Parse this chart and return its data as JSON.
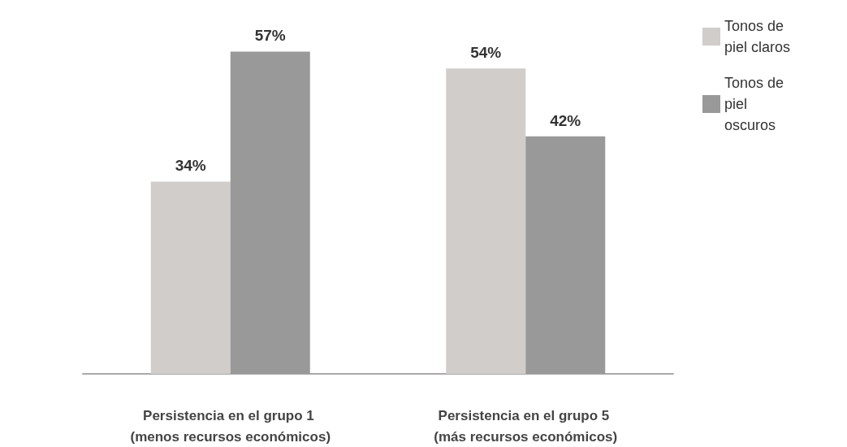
{
  "chart_data": {
    "type": "bar",
    "categories": [
      "Persistencia en el grupo 1 (menos recursos económicos)",
      "Persistencia en el grupo 5 (más recursos económicos)"
    ],
    "series": [
      {
        "name": "Tonos de piel claros",
        "color": "#d0cdcb",
        "values": [
          34,
          54
        ],
        "value_labels": [
          "34%",
          "54%"
        ]
      },
      {
        "name": "Tonos de piel oscuros",
        "color": "#999999",
        "values": [
          57,
          42
        ],
        "value_labels": [
          "57%",
          "42%"
        ]
      }
    ],
    "legend": "top right"
  }
}
